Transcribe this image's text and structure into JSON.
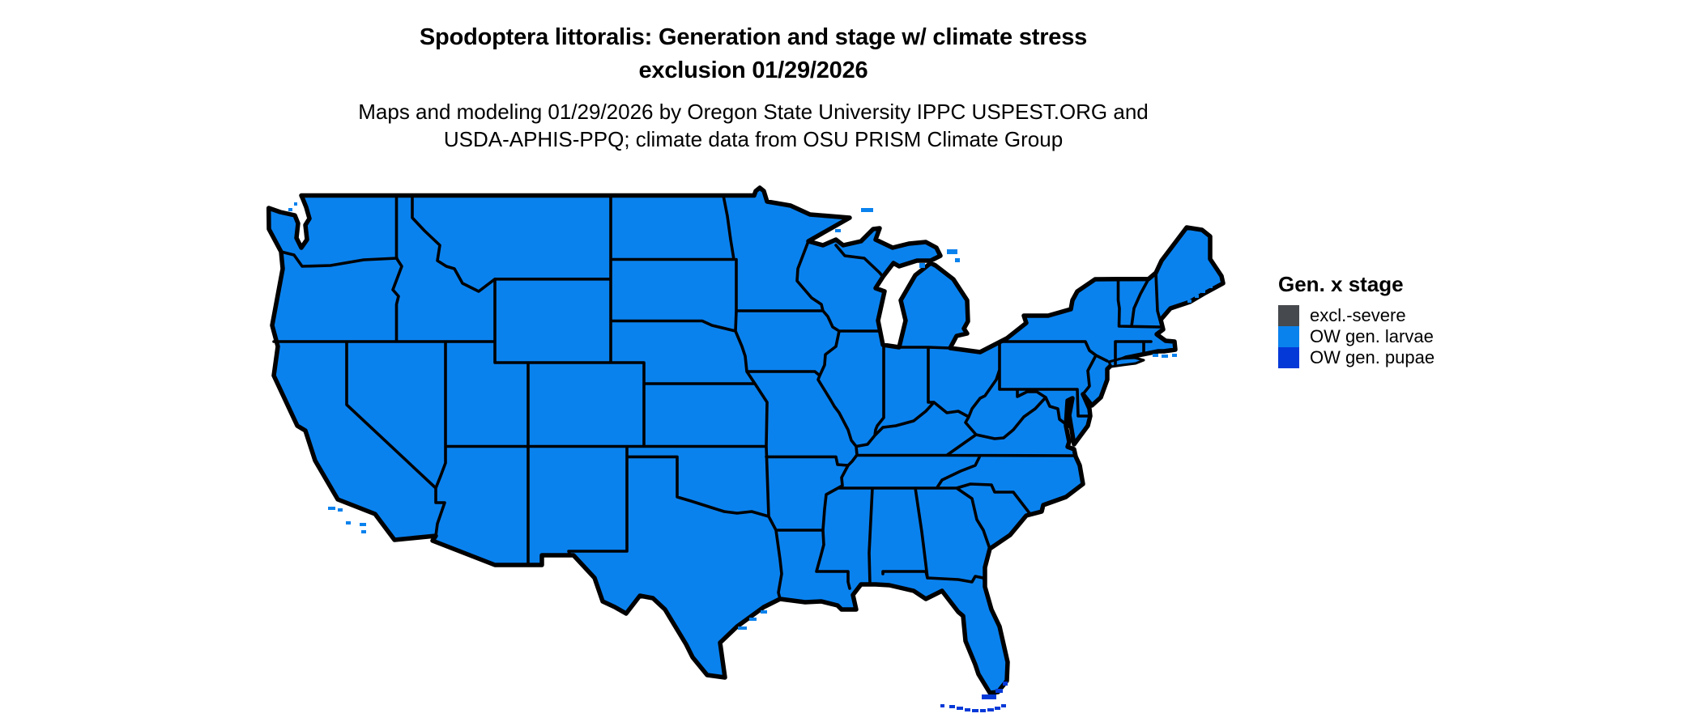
{
  "header": {
    "title_line1": "Spodoptera littoralis: Generation and stage w/ climate stress",
    "title_line2": "exclusion 01/29/2026",
    "subtitle_line1": "Maps and modeling 01/29/2026 by Oregon State University IPPC USPEST.ORG and",
    "subtitle_line2": "USDA-APHIS-PPQ; climate data from OSU PRISM Climate Group"
  },
  "legend": {
    "title": "Gen. x stage",
    "items": [
      {
        "label": "excl.-severe",
        "color": "#46494D"
      },
      {
        "label": "OW gen. larvae",
        "color": "#0A82EE"
      },
      {
        "label": "OW gen. pupae",
        "color": "#0439D8"
      }
    ]
  },
  "map": {
    "type": "choropleth",
    "region": "Continental United States with state borders",
    "border_color": "#000000",
    "water_color": "#FFFFFF",
    "dominant_class": "OW gen. larvae",
    "dominant_fill": "#0A82EE",
    "exceptions": [
      {
        "area": "Florida Keys and far southern Florida coastal fringe",
        "class": "OW gen. pupae",
        "fill": "#0439D8"
      }
    ]
  }
}
